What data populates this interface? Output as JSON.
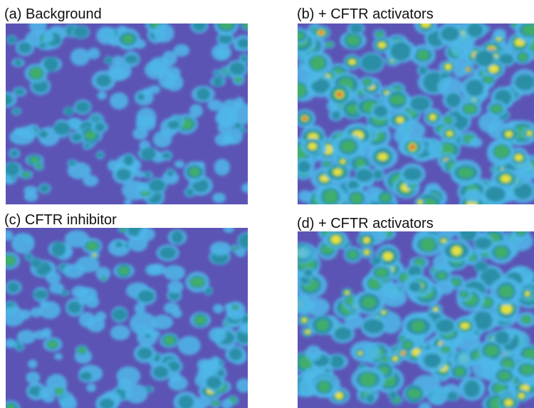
{
  "panels": [
    {
      "label": "(a) Background"
    },
    {
      "label": "(b) + CFTR activators"
    },
    {
      "label": "(c) CFTR inhibitor"
    },
    {
      "label": "(d) + CFTR activators"
    }
  ]
}
